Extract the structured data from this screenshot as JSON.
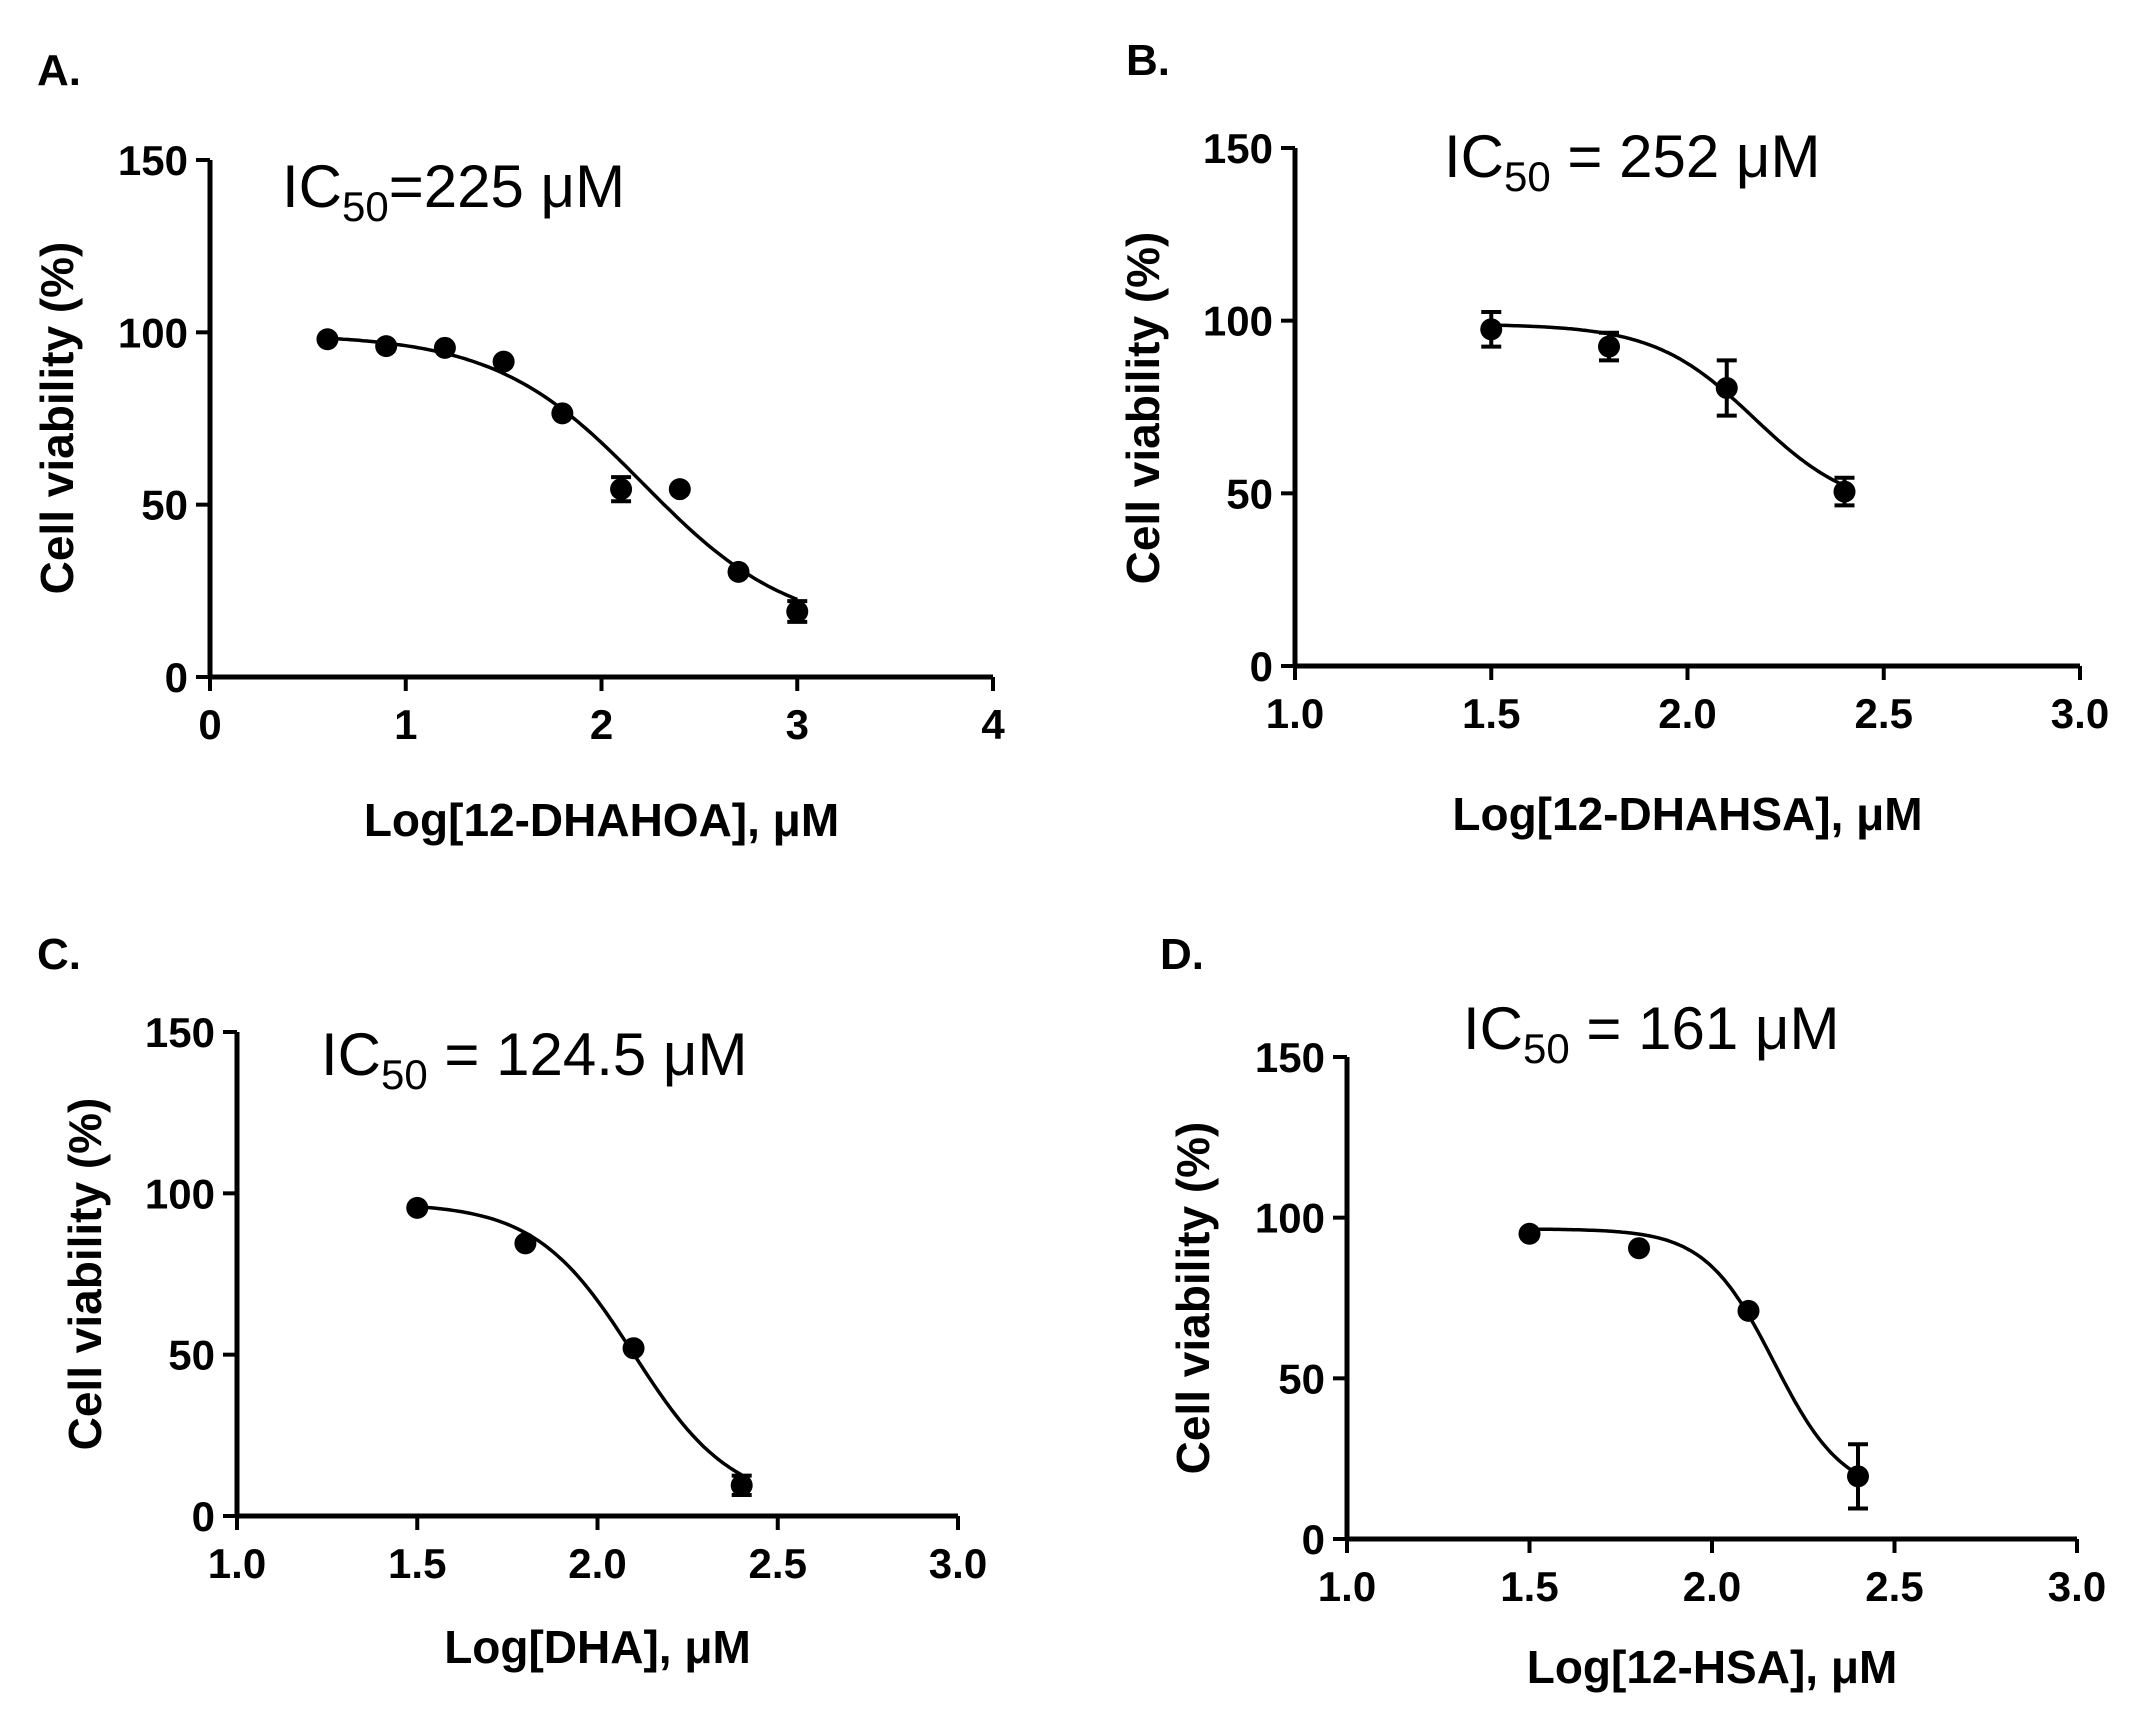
{
  "chart_data": [
    {
      "type": "scatter",
      "panel": "A.",
      "annotation": {
        "prefix": "IC",
        "subscript": "50",
        "value": "=225 μM"
      },
      "xlabel": "Log[12-DHAHOA], μM",
      "ylabel": "Cell viability (%)",
      "xlim": [
        0,
        4
      ],
      "ylim": [
        0,
        150
      ],
      "xticks": [
        "0",
        "1",
        "2",
        "3",
        "4"
      ],
      "yticks": [
        "0",
        "50",
        "100",
        "150"
      ],
      "x": [
        0.6,
        0.9,
        1.2,
        1.5,
        1.8,
        2.1,
        2.4,
        2.7,
        3.0
      ],
      "y": [
        98,
        96,
        95.5,
        91.5,
        76.5,
        54.5,
        54.5,
        30.5,
        19
      ],
      "error": [
        0,
        0,
        0,
        0,
        0,
        3.5,
        0,
        0,
        3
      ],
      "fit": "sigmoidal dose-response curve",
      "colors": {
        "points": "#000000",
        "curve": "#000000"
      }
    },
    {
      "type": "scatter",
      "panel": "B.",
      "annotation": {
        "prefix": "IC",
        "subscript": "50",
        "value": " = 252 μM"
      },
      "xlabel": "Log[12-DHAHSA], μM",
      "ylabel": "Cell viability (%)",
      "xlim": [
        1.0,
        3.0
      ],
      "ylim": [
        0,
        150
      ],
      "xticks": [
        "1.0",
        "1.5",
        "2.0",
        "2.5",
        "3.0"
      ],
      "yticks": [
        "0",
        "50",
        "100",
        "150"
      ],
      "x": [
        1.5,
        1.8,
        2.1,
        2.4
      ],
      "y": [
        97.5,
        92.5,
        80.5,
        50.5
      ],
      "error": [
        5,
        4,
        8,
        4
      ],
      "fit": "sigmoidal dose-response curve",
      "colors": {
        "points": "#000000",
        "curve": "#000000"
      }
    },
    {
      "type": "scatter",
      "panel": "C.",
      "annotation": {
        "prefix": "IC",
        "subscript": "50",
        "value": " = 124.5 μM"
      },
      "xlabel": "Log[DHA], μM",
      "ylabel": "Cell viability (%)",
      "xlim": [
        1.0,
        3.0
      ],
      "ylim": [
        0,
        150
      ],
      "xticks": [
        "1.0",
        "1.5",
        "2.0",
        "2.5",
        "3.0"
      ],
      "yticks": [
        "0",
        "50",
        "100",
        "150"
      ],
      "x": [
        1.5,
        1.8,
        2.1,
        2.4
      ],
      "y": [
        95.5,
        84.5,
        52,
        9.5
      ],
      "error": [
        0,
        0,
        0,
        3
      ],
      "fit": "sigmoidal dose-response curve",
      "colors": {
        "points": "#000000",
        "curve": "#000000"
      }
    },
    {
      "type": "scatter",
      "panel": "D.",
      "annotation": {
        "prefix": "IC",
        "subscript": "50",
        "value": " = 161 μM"
      },
      "xlabel": "Log[12-HSA], μM",
      "ylabel": "Cell viability (%)",
      "xlim": [
        1.0,
        3.0
      ],
      "ylim": [
        0,
        150
      ],
      "xticks": [
        "1.0",
        "1.5",
        "2.0",
        "2.5",
        "3.0"
      ],
      "yticks": [
        "0",
        "50",
        "100",
        "150"
      ],
      "x": [
        1.5,
        1.8,
        2.1,
        2.4
      ],
      "y": [
        95,
        90.5,
        71,
        19.5
      ],
      "error": [
        0,
        0,
        0,
        10
      ],
      "fit": "sigmoidal dose-response curve",
      "colors": {
        "points": "#000000",
        "curve": "#000000"
      }
    }
  ]
}
